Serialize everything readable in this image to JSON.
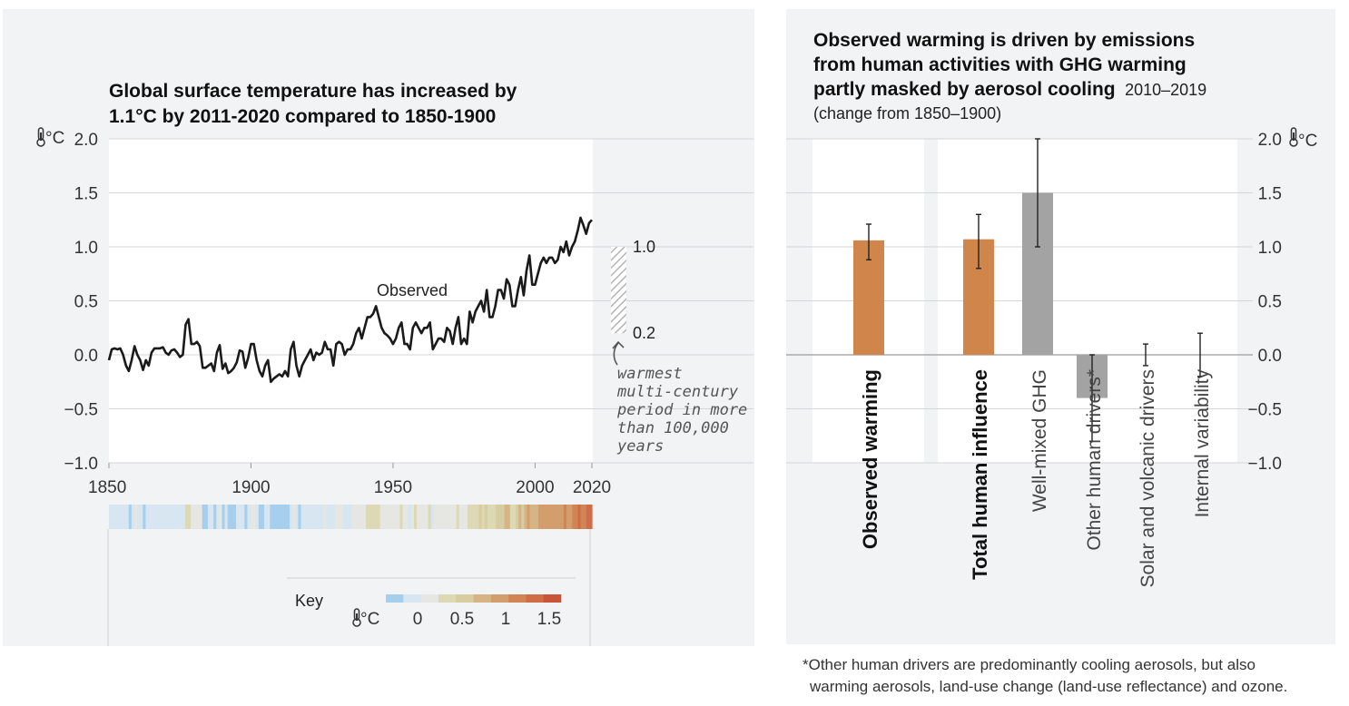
{
  "chart_data": [
    {
      "type": "line",
      "title_line1": "Global surface temperature has increased by",
      "title_line2": "1.1°C by 2011-2020 compared to 1850-1900",
      "unit": "°C",
      "xlim": [
        1850,
        2020
      ],
      "ylim": [
        -1.0,
        2.0
      ],
      "x_ticks": [
        "1850",
        "1900",
        "1950",
        "2000",
        "2020"
      ],
      "y_ticks": [
        "2.0",
        "1.5",
        "1.0",
        "0.5",
        "0.0",
        "−0.5",
        "−1.0"
      ],
      "series": [
        {
          "name": "Observed",
          "x": [
            1850,
            1851,
            1852,
            1853,
            1854,
            1855,
            1856,
            1857,
            1858,
            1859,
            1860,
            1861,
            1862,
            1863,
            1864,
            1865,
            1866,
            1867,
            1868,
            1869,
            1870,
            1871,
            1872,
            1873,
            1874,
            1875,
            1876,
            1877,
            1878,
            1879,
            1880,
            1881,
            1882,
            1883,
            1884,
            1885,
            1886,
            1887,
            1888,
            1889,
            1890,
            1891,
            1892,
            1893,
            1894,
            1895,
            1896,
            1897,
            1898,
            1899,
            1900,
            1901,
            1902,
            1903,
            1904,
            1905,
            1906,
            1907,
            1908,
            1909,
            1910,
            1911,
            1912,
            1913,
            1914,
            1915,
            1916,
            1917,
            1918,
            1919,
            1920,
            1921,
            1922,
            1923,
            1924,
            1925,
            1926,
            1927,
            1928,
            1929,
            1930,
            1931,
            1932,
            1933,
            1934,
            1935,
            1936,
            1937,
            1938,
            1939,
            1940,
            1941,
            1942,
            1943,
            1944,
            1945,
            1946,
            1947,
            1948,
            1949,
            1950,
            1951,
            1952,
            1953,
            1954,
            1955,
            1956,
            1957,
            1958,
            1959,
            1960,
            1961,
            1962,
            1963,
            1964,
            1965,
            1966,
            1967,
            1968,
            1969,
            1970,
            1971,
            1972,
            1973,
            1974,
            1975,
            1976,
            1977,
            1978,
            1979,
            1980,
            1981,
            1982,
            1983,
            1984,
            1985,
            1986,
            1987,
            1988,
            1989,
            1990,
            1991,
            1992,
            1993,
            1994,
            1995,
            1996,
            1997,
            1998,
            1999,
            2000,
            2001,
            2002,
            2003,
            2004,
            2005,
            2006,
            2007,
            2008,
            2009,
            2010,
            2011,
            2012,
            2013,
            2014,
            2015,
            2016,
            2017,
            2018,
            2019,
            2020
          ],
          "y": [
            -0.05,
            0.05,
            0.06,
            0.05,
            0.06,
            0.0,
            -0.1,
            -0.15,
            -0.05,
            0.08,
            0.0,
            -0.05,
            -0.14,
            -0.05,
            -0.1,
            0.02,
            0.06,
            0.06,
            0.06,
            0.07,
            0.02,
            0.0,
            0.04,
            0.05,
            0.02,
            -0.02,
            0.0,
            0.28,
            0.33,
            0.1,
            0.1,
            0.12,
            0.08,
            -0.12,
            -0.12,
            -0.1,
            -0.08,
            -0.15,
            0.02,
            0.09,
            -0.13,
            -0.08,
            -0.17,
            -0.15,
            -0.12,
            -0.07,
            0.04,
            0.03,
            -0.12,
            -0.03,
            0.1,
            0.1,
            -0.05,
            -0.15,
            -0.2,
            -0.1,
            -0.05,
            -0.25,
            -0.22,
            -0.2,
            -0.18,
            -0.2,
            -0.15,
            -0.2,
            0.05,
            0.12,
            -0.1,
            -0.2,
            -0.1,
            -0.05,
            0.0,
            0.05,
            -0.05,
            0.02,
            0.0,
            0.02,
            0.12,
            0.05,
            0.05,
            -0.1,
            0.1,
            0.12,
            0.1,
            0.0,
            0.05,
            0.05,
            0.1,
            0.2,
            0.25,
            0.15,
            0.25,
            0.35,
            0.35,
            0.38,
            0.45,
            0.35,
            0.25,
            0.2,
            0.18,
            0.15,
            0.1,
            0.15,
            0.25,
            0.3,
            0.1,
            0.1,
            0.05,
            0.25,
            0.3,
            0.25,
            0.2,
            0.25,
            0.25,
            0.3,
            0.05,
            0.1,
            0.15,
            0.15,
            0.12,
            0.25,
            0.22,
            0.1,
            0.25,
            0.35,
            0.1,
            0.15,
            0.1,
            0.4,
            0.3,
            0.4,
            0.45,
            0.5,
            0.4,
            0.6,
            0.35,
            0.35,
            0.45,
            0.6,
            0.6,
            0.52,
            0.7,
            0.65,
            0.45,
            0.45,
            0.6,
            0.72,
            0.55,
            0.78,
            0.92,
            0.65,
            0.65,
            0.75,
            0.85,
            0.9,
            0.85,
            0.9,
            0.9,
            0.85,
            0.88,
            1.0,
            0.95,
            1.05,
            0.92,
            1.0,
            1.05,
            1.15,
            1.27,
            1.2,
            1.12,
            1.22,
            1.25
          ]
        }
      ],
      "annotation": {
        "range_top": "1.0",
        "range_bottom": "0.2",
        "range_values": [
          0.2,
          1.0
        ],
        "text": [
          "warmest",
          "multi-century",
          "period in more",
          "than 100,000",
          "years"
        ]
      },
      "stripes": {
        "key_label": "Key",
        "key_unit": "°C",
        "key_ticks": [
          "0",
          "0.5",
          "1",
          "1.5"
        ],
        "key_colors": [
          "#a6cfee",
          "#d7e6f0",
          "#e6e6e2",
          "#dcd9b4",
          "#d7cca2",
          "#d5b585",
          "#d39e6e",
          "#d18556",
          "#cf6d46",
          "#c8543a"
        ]
      }
    },
    {
      "type": "bar",
      "title_line1": "Observed warming is driven by emissions",
      "title_line2": "from human activities with GHG warming",
      "title_line3": "partly masked by aerosol cooling",
      "title_suffix": "2010–2019",
      "subtitle": "(change from 1850–1900)",
      "unit": "°C",
      "ylim": [
        -1.0,
        2.0
      ],
      "y_ticks": [
        "2.0",
        "1.5",
        "1.0",
        "0.5",
        "0.0",
        "−0.5",
        "−1.0"
      ],
      "categories": [
        "Observed warming",
        "Total human influence",
        "Well-mixed GHG",
        "Other human drivers*",
        "Solar and volcanic drivers",
        "Internal variability"
      ],
      "values": [
        1.06,
        1.07,
        1.5,
        -0.4,
        0.0,
        0.0
      ],
      "error_low": [
        0.88,
        0.8,
        1.0,
        -0.8,
        -0.1,
        -0.2
      ],
      "error_high": [
        1.21,
        1.3,
        2.0,
        0.0,
        0.1,
        0.2
      ],
      "colors": [
        "#d0854a",
        "#d0854a",
        "#a3a3a3",
        "#a3a3a3",
        "#a3a3a3",
        "#a3a3a3"
      ],
      "footnote_line1": "*Other human drivers are predominantly cooling aerosols, but also",
      "footnote_line2": "warming aerosols, land-use change (land-use reflectance) and ozone."
    }
  ]
}
